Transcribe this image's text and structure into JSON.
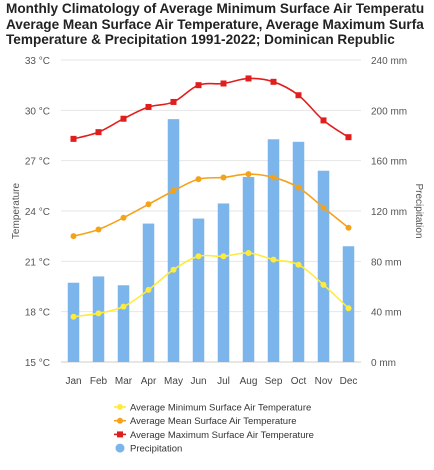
{
  "chart_data": {
    "type": "bar",
    "title_lines": [
      "Monthly Climatology of Average Minimum Surface Air Temperatu",
      "Average Mean Surface Air Temperature, Average Maximum Surfa",
      "Temperature & Precipitation 1991-2022; Dominican Republic"
    ],
    "categories": [
      "Jan",
      "Feb",
      "Mar",
      "Apr",
      "May",
      "Jun",
      "Jul",
      "Aug",
      "Sep",
      "Oct",
      "Nov",
      "Dec"
    ],
    "ylabel_left": "Temperature",
    "ylabel_right": "Precipitation",
    "y_left": {
      "min": 15,
      "max": 33,
      "ticks": [
        15,
        18,
        21,
        24,
        27,
        30,
        33
      ],
      "tick_labels": [
        "15 °C",
        "18 °C",
        "21 °C",
        "24 °C",
        "27 °C",
        "30 °C",
        "33 °C"
      ]
    },
    "y_right": {
      "min": 0,
      "max": 240,
      "ticks": [
        0,
        40,
        80,
        120,
        160,
        200,
        240
      ],
      "tick_labels": [
        "0 mm",
        "40 mm",
        "80 mm",
        "120 mm",
        "160 mm",
        "200 mm",
        "240 mm"
      ]
    },
    "grid": true,
    "legend_position": "bottom",
    "precipitation": {
      "name": "Precipitation",
      "color": "#7cb5ec",
      "values": [
        63,
        68,
        61,
        110,
        193,
        114,
        126,
        147,
        177,
        175,
        152,
        92
      ]
    },
    "series": [
      {
        "name": "Average Minimum Surface Air Temperature",
        "color": "#ffeb3b",
        "values": [
          17.7,
          17.9,
          18.3,
          19.3,
          20.5,
          21.3,
          21.3,
          21.5,
          21.1,
          20.8,
          19.6,
          18.2
        ]
      },
      {
        "name": "Average Mean Surface Air Temperature",
        "color": "#f5a21b",
        "values": [
          22.5,
          22.9,
          23.6,
          24.4,
          25.2,
          25.9,
          26.0,
          26.2,
          26.0,
          25.4,
          24.2,
          23.0
        ]
      },
      {
        "name": "Average Maximum Surface Air Temperature",
        "color": "#e11e1e",
        "values": [
          28.3,
          28.7,
          29.5,
          30.2,
          30.5,
          31.5,
          31.6,
          31.9,
          31.7,
          30.9,
          29.4,
          28.4
        ]
      }
    ]
  }
}
